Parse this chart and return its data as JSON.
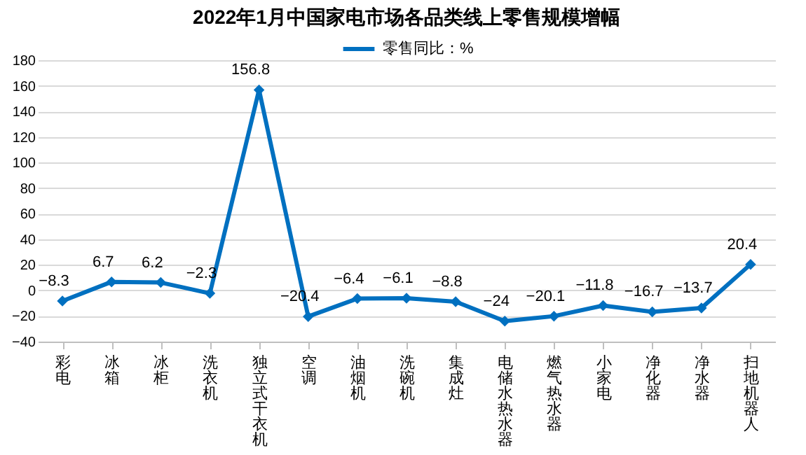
{
  "chart_data": {
    "type": "line",
    "title": "2022年1月中国家电市场各品类线上零售规模增幅",
    "categories": [
      "彩电",
      "冰箱",
      "冰柜",
      "洗衣机",
      "独立式干衣机",
      "空调",
      "油烟机",
      "洗碗机",
      "集成灶",
      "电储水热水器",
      "燃气热水器",
      "小家电",
      "净化器",
      "净水器",
      "扫地机器人"
    ],
    "series": [
      {
        "name": "零售同比：%",
        "color": "#0070c0",
        "values": [
          -8.3,
          6.7,
          6.2,
          -2.3,
          156.8,
          -20.4,
          -6.4,
          -6.1,
          -8.8,
          -24,
          -20.1,
          -11.8,
          -16.7,
          -13.7,
          20.4
        ]
      }
    ],
    "ylim": [
      -40,
      180
    ],
    "yticks": [
      -40,
      -20,
      0,
      20,
      40,
      60,
      80,
      100,
      120,
      140,
      160,
      180
    ],
    "grid": "y",
    "legend": "top",
    "marker": "diamond",
    "line_style": "solid",
    "data_labels": true
  }
}
